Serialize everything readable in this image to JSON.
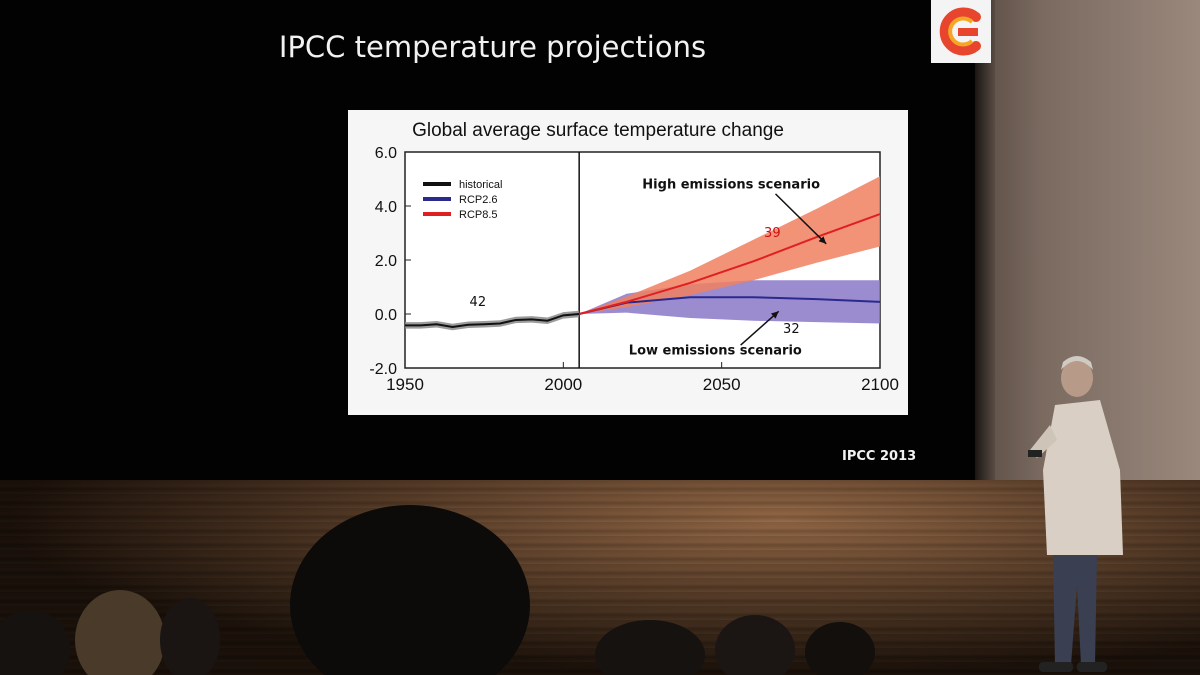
{
  "slide": {
    "title": "IPCC temperature projections",
    "credit": "IPCC 2013"
  },
  "chart_data": {
    "type": "line",
    "title": "Global average surface temperature change",
    "xlabel": "",
    "ylabel": "",
    "xlim": [
      1950,
      2100
    ],
    "ylim": [
      -2.0,
      6.0
    ],
    "xticks": [
      "1950",
      "2000",
      "2050",
      "2100"
    ],
    "yticks": [
      "6.0",
      "4.0",
      "2.0",
      "0.0",
      "-2.0"
    ],
    "divider_year": 2005,
    "legend": {
      "position": "top-left",
      "entries": [
        {
          "name": "historical",
          "color": "#111111"
        },
        {
          "name": "RCP2.6",
          "color": "#2a2a8c"
        },
        {
          "name": "RCP8.5",
          "color": "#e02020"
        }
      ]
    },
    "series": [
      {
        "name": "historical",
        "color": "#111111",
        "band_color": "#8a8a8a",
        "x": [
          1950,
          1955,
          1960,
          1965,
          1970,
          1975,
          1980,
          1985,
          1990,
          1995,
          2000,
          2005
        ],
        "y": [
          -0.42,
          -0.42,
          -0.38,
          -0.48,
          -0.4,
          -0.38,
          -0.35,
          -0.22,
          -0.2,
          -0.25,
          -0.05,
          0.0
        ],
        "band": 0.12
      },
      {
        "name": "RCP2.6",
        "color": "#2a2a8c",
        "band_color": "#8a78c8",
        "x": [
          2005,
          2020,
          2040,
          2060,
          2080,
          2100
        ],
        "y": [
          0.0,
          0.42,
          0.62,
          0.62,
          0.55,
          0.45
        ],
        "lower": [
          0.0,
          0.05,
          -0.15,
          -0.25,
          -0.3,
          -0.35
        ],
        "upper": [
          0.0,
          0.75,
          1.1,
          1.25,
          1.25,
          1.25
        ]
      },
      {
        "name": "RCP8.5",
        "color": "#e02020",
        "band_color": "#f08060",
        "x": [
          2005,
          2020,
          2040,
          2060,
          2080,
          2100
        ],
        "y": [
          0.0,
          0.45,
          1.15,
          1.95,
          2.85,
          3.7
        ],
        "lower": [
          0.0,
          0.25,
          0.7,
          1.25,
          1.9,
          2.5
        ],
        "upper": [
          0.0,
          0.65,
          1.6,
          2.75,
          3.9,
          5.1
        ]
      }
    ],
    "annotations": [
      {
        "text": "42",
        "color": "#111111"
      },
      {
        "text": "39",
        "color": "#cc1111"
      },
      {
        "text": "32",
        "color": "#111111"
      },
      {
        "text": "High emissions scenario",
        "color": "#111111"
      },
      {
        "text": "Low emissions scenario",
        "color": "#111111"
      }
    ]
  }
}
